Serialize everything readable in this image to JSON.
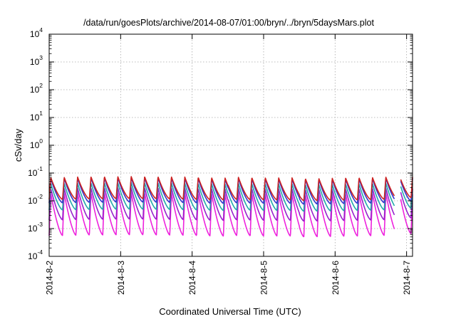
{
  "chart_data": {
    "type": "line",
    "title": "/data/run/goesPlots/archive/2014-08-07/01:00/bryn/../bryn/5daysMars.plot",
    "xlabel": "Coordinated Universal Time (UTC)",
    "ylabel": "cSv/day",
    "yscale": "log",
    "ylim": [
      0.0001,
      10000
    ],
    "y_ticks": [
      {
        "base": "10",
        "exp": "-4"
      },
      {
        "base": "10",
        "exp": "-3"
      },
      {
        "base": "10",
        "exp": "-2"
      },
      {
        "base": "10",
        "exp": "-1"
      },
      {
        "base": "10",
        "exp": "0"
      },
      {
        "base": "10",
        "exp": "1"
      },
      {
        "base": "10",
        "exp": "2"
      },
      {
        "base": "10",
        "exp": "3"
      },
      {
        "base": "10",
        "exp": "4"
      }
    ],
    "x_ticks": [
      "2014-8-2",
      "2014-8-3",
      "2014-8-4",
      "2014-8-5",
      "2014-8-6",
      "2014-8-7"
    ],
    "xlim": [
      "2014-08-02T00:00",
      "2014-08-07T02:00"
    ],
    "grid": true,
    "sol_period_hours": 4.5,
    "data_gap_hours": [
      116,
      118
    ],
    "series": [
      {
        "color": "#cc2222",
        "peak": 0.075,
        "min": 0.012
      },
      {
        "color": "#3333cc",
        "peak": 0.068,
        "min": 0.009
      },
      {
        "color": "#22aaaa",
        "peak": 0.045,
        "min": 0.005
      },
      {
        "color": "#9922cc",
        "peak": 0.03,
        "min": 0.0022
      },
      {
        "color": "#ee22dd",
        "peak": 0.02,
        "min": 0.0006
      }
    ]
  }
}
